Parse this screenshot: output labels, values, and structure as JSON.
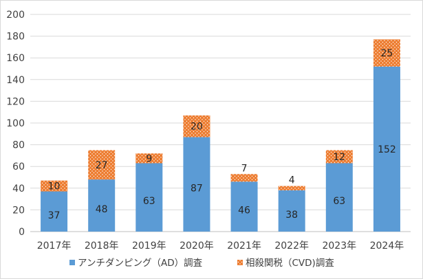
{
  "chart_data": {
    "type": "bar",
    "stacked": true,
    "categories": [
      "2017年",
      "2018年",
      "2019年",
      "2020年",
      "2021年",
      "2022年",
      "2023年",
      "2024年"
    ],
    "series": [
      {
        "name": "アンチダンピング（AD）調査",
        "values": [
          37,
          48,
          63,
          87,
          46,
          38,
          63,
          152
        ],
        "color": "#5b9bd5",
        "label_color": "#262626"
      },
      {
        "name": "相殺関税（CVD)調査",
        "values": [
          10,
          27,
          9,
          20,
          7,
          4,
          12,
          25
        ],
        "color": "#ed7d31",
        "pattern": "dotted",
        "label_color": "#262626"
      }
    ],
    "ylim": [
      0,
      200
    ],
    "yticks": [
      0,
      20,
      40,
      60,
      80,
      100,
      120,
      140,
      160,
      180,
      200
    ],
    "grid": true,
    "legend_position": "bottom"
  }
}
